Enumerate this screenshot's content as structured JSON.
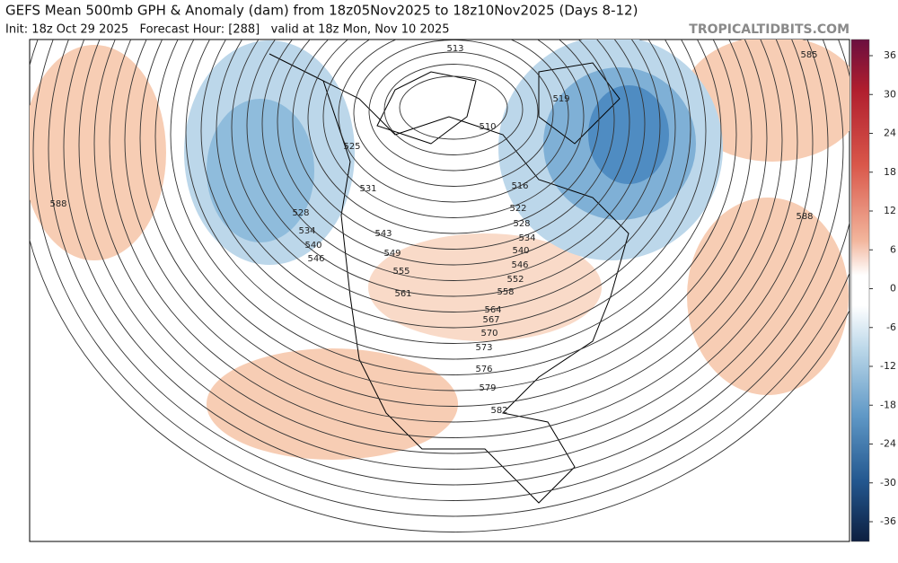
{
  "header": {
    "title": "GEFS Mean 500mb GPH & Anomaly (dam) from 18z05Nov2025 to 18z10Nov2025 (Days 8-12)",
    "subtitle": "Init: 18z Oct 29 2025   Forecast Hour: [288]   valid at 18z Mon, Nov 10 2025",
    "site": "TROPICALTIDBITS.COM"
  },
  "colorbar": {
    "ticks": [
      36,
      30,
      24,
      18,
      12,
      6,
      0,
      -6,
      -12,
      -18,
      -24,
      -30,
      -36
    ]
  },
  "contour_labels": [
    "513",
    "510",
    "519",
    "525",
    "531",
    "528",
    "534",
    "540",
    "546",
    "543",
    "549",
    "555",
    "561",
    "516",
    "522",
    "528",
    "534",
    "540",
    "546",
    "552",
    "558",
    "564",
    "567",
    "570",
    "573",
    "576",
    "579",
    "582",
    "585",
    "588",
    "588"
  ]
}
